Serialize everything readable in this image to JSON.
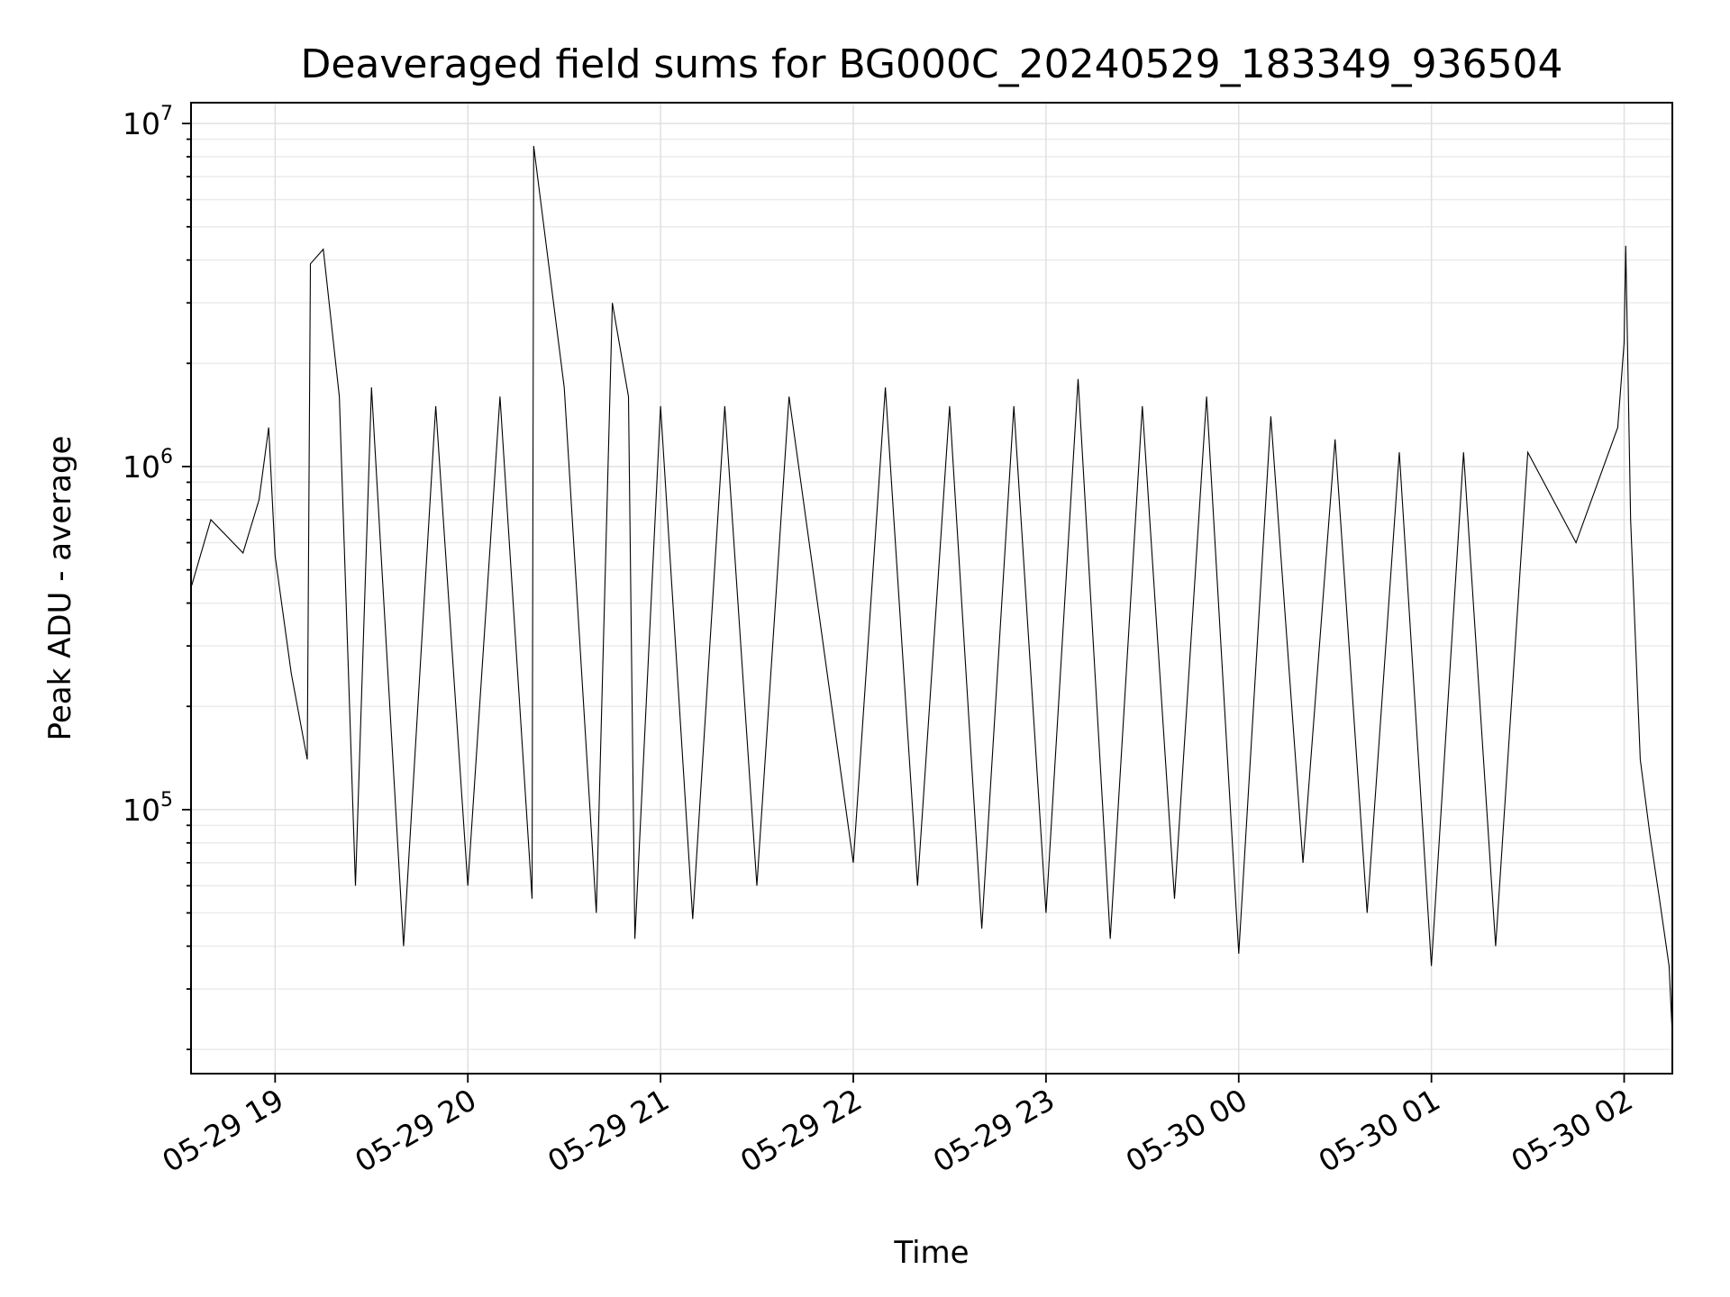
{
  "chart_data": {
    "type": "line",
    "title": "Deaveraged field sums for BG000C_20240529_183349_936504",
    "xlabel": "Time",
    "ylabel": "Peak ADU - average",
    "y_scale": "log",
    "ylim": [
      17000,
      11500000
    ],
    "y_ticks": [
      {
        "base": "10",
        "exp": "5",
        "value": 100000
      },
      {
        "base": "10",
        "exp": "6",
        "value": 1000000
      },
      {
        "base": "10",
        "exp": "7",
        "value": 10000000
      }
    ],
    "xlim": [
      "2024-05-29 18:33:49",
      "2024-05-30 02:15:00"
    ],
    "x_ticks": [
      {
        "label": "05-29 19",
        "value": "2024-05-29 19:00"
      },
      {
        "label": "05-29 20",
        "value": "2024-05-29 20:00"
      },
      {
        "label": "05-29 21",
        "value": "2024-05-29 21:00"
      },
      {
        "label": "05-29 22",
        "value": "2024-05-29 22:00"
      },
      {
        "label": "05-29 23",
        "value": "2024-05-29 23:00"
      },
      {
        "label": "05-30 00",
        "value": "2024-05-30 00:00"
      },
      {
        "label": "05-30 01",
        "value": "2024-05-30 01:00"
      },
      {
        "label": "05-30 02",
        "value": "2024-05-30 02:00"
      }
    ],
    "grid": true,
    "series": [
      {
        "color": "#000000",
        "points": [
          [
            "2024-05-29 18:34",
            450000
          ],
          [
            "2024-05-29 18:40",
            700000
          ],
          [
            "2024-05-29 18:50",
            560000
          ],
          [
            "2024-05-29 18:55",
            800000
          ],
          [
            "2024-05-29 18:58",
            1300000
          ],
          [
            "2024-05-29 19:00",
            550000
          ],
          [
            "2024-05-29 19:05",
            250000
          ],
          [
            "2024-05-29 19:10",
            140000
          ],
          [
            "2024-05-29 19:11",
            3900000
          ],
          [
            "2024-05-29 19:15",
            4300000
          ],
          [
            "2024-05-29 19:20",
            1600000
          ],
          [
            "2024-05-29 19:25",
            60000
          ],
          [
            "2024-05-29 19:30",
            1700000
          ],
          [
            "2024-05-29 19:40",
            40000
          ],
          [
            "2024-05-29 19:50",
            1500000
          ],
          [
            "2024-05-29 20:00",
            60000
          ],
          [
            "2024-05-29 20:10",
            1600000
          ],
          [
            "2024-05-29 20:20",
            55000
          ],
          [
            "2024-05-29 20:20:30",
            8600000
          ],
          [
            "2024-05-29 20:30",
            1700000
          ],
          [
            "2024-05-29 20:40",
            50000
          ],
          [
            "2024-05-29 20:45",
            3000000
          ],
          [
            "2024-05-29 20:50",
            1600000
          ],
          [
            "2024-05-29 20:52",
            42000
          ],
          [
            "2024-05-29 21:00",
            1500000
          ],
          [
            "2024-05-29 21:10",
            48000
          ],
          [
            "2024-05-29 21:20",
            1500000
          ],
          [
            "2024-05-29 21:30",
            60000
          ],
          [
            "2024-05-29 21:40",
            1600000
          ],
          [
            "2024-05-29 22:00",
            70000
          ],
          [
            "2024-05-29 22:10",
            1700000
          ],
          [
            "2024-05-29 22:20",
            60000
          ],
          [
            "2024-05-29 22:30",
            1500000
          ],
          [
            "2024-05-29 22:40",
            45000
          ],
          [
            "2024-05-29 22:50",
            1500000
          ],
          [
            "2024-05-29 23:00",
            50000
          ],
          [
            "2024-05-29 23:10",
            1800000
          ],
          [
            "2024-05-29 23:20",
            42000
          ],
          [
            "2024-05-29 23:30",
            1500000
          ],
          [
            "2024-05-29 23:40",
            55000
          ],
          [
            "2024-05-29 23:50",
            1600000
          ],
          [
            "2024-05-30 00:00",
            38000
          ],
          [
            "2024-05-30 00:10",
            1400000
          ],
          [
            "2024-05-30 00:20",
            70000
          ],
          [
            "2024-05-30 00:30",
            1200000
          ],
          [
            "2024-05-30 00:40",
            50000
          ],
          [
            "2024-05-30 00:50",
            1100000
          ],
          [
            "2024-05-30 01:00",
            35000
          ],
          [
            "2024-05-30 01:10",
            1100000
          ],
          [
            "2024-05-30 01:20",
            40000
          ],
          [
            "2024-05-30 01:30",
            1100000
          ],
          [
            "2024-05-30 01:45",
            600000
          ],
          [
            "2024-05-30 01:58",
            1300000
          ],
          [
            "2024-05-30 02:00",
            2300000
          ],
          [
            "2024-05-30 02:00:30",
            4400000
          ],
          [
            "2024-05-30 02:02",
            700000
          ],
          [
            "2024-05-30 02:05",
            140000
          ],
          [
            "2024-05-30 02:08",
            85000
          ],
          [
            "2024-05-30 02:11",
            55000
          ],
          [
            "2024-05-30 02:14",
            35000
          ],
          [
            "2024-05-30 02:15",
            22000
          ]
        ]
      }
    ]
  }
}
